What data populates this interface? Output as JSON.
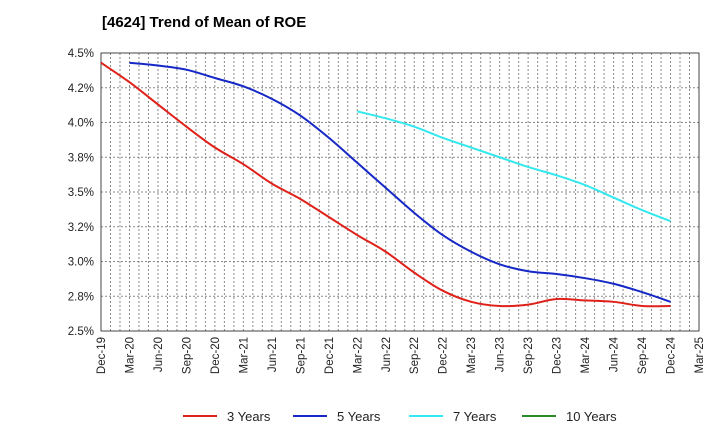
{
  "title": "[4624]  Trend of Mean of ROE",
  "chart_data": {
    "type": "line",
    "title": "[4624]  Trend of Mean of ROE",
    "xlabel": "",
    "ylabel": "",
    "ylim": [
      2.5,
      4.5
    ],
    "y_ticks": [
      "2.5%",
      "2.8%",
      "3.0%",
      "3.2%",
      "3.5%",
      "3.8%",
      "4.0%",
      "4.2%",
      "4.5%"
    ],
    "y_tick_values": [
      2.5,
      2.75,
      3.0,
      3.25,
      3.5,
      3.75,
      4.0,
      4.25,
      4.5
    ],
    "grid": true,
    "legend_position": "bottom",
    "categories": [
      "Dec-19",
      "Mar-20",
      "Jun-20",
      "Sep-20",
      "Dec-20",
      "Mar-21",
      "Jun-21",
      "Sep-21",
      "Dec-21",
      "Mar-22",
      "Jun-22",
      "Sep-22",
      "Dec-22",
      "Mar-23",
      "Jun-23",
      "Sep-23",
      "Dec-23",
      "Mar-24",
      "Jun-24",
      "Sep-24",
      "Dec-24",
      "Mar-25"
    ],
    "series": [
      {
        "name": "3 Years",
        "color": "#e0211a",
        "values": [
          4.43,
          4.29,
          4.13,
          3.97,
          3.82,
          3.7,
          3.56,
          3.45,
          3.32,
          3.19,
          3.07,
          2.92,
          2.79,
          2.71,
          2.68,
          2.69,
          2.73,
          2.72,
          2.71,
          2.68,
          2.68,
          null
        ]
      },
      {
        "name": "5 Years",
        "color": "#1628c6",
        "values": [
          null,
          4.43,
          4.41,
          4.38,
          4.32,
          4.26,
          4.17,
          4.05,
          3.89,
          3.71,
          3.53,
          3.35,
          3.19,
          3.07,
          2.98,
          2.93,
          2.91,
          2.88,
          2.84,
          2.78,
          2.71,
          null
        ]
      },
      {
        "name": "7 Years",
        "color": "#33e8ee",
        "values": [
          null,
          null,
          null,
          null,
          null,
          null,
          null,
          null,
          null,
          4.08,
          4.03,
          3.97,
          3.89,
          3.82,
          3.75,
          3.68,
          3.62,
          3.55,
          3.46,
          3.37,
          3.29,
          null
        ]
      },
      {
        "name": "10 Years",
        "color": "#2a8a2a",
        "values": [
          null,
          null,
          null,
          null,
          null,
          null,
          null,
          null,
          null,
          null,
          null,
          null,
          null,
          null,
          null,
          null,
          null,
          null,
          null,
          null,
          null,
          null
        ]
      }
    ]
  }
}
